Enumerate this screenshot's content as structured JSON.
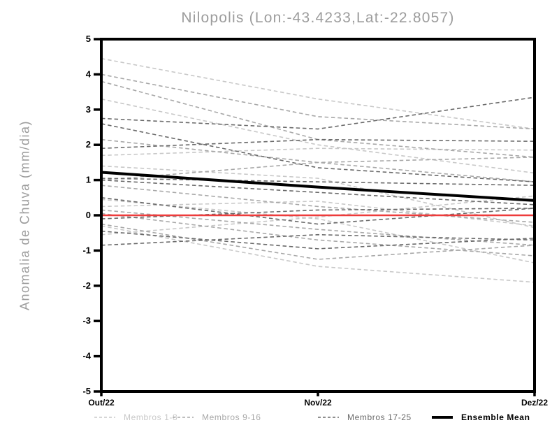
{
  "chart_data": {
    "type": "line",
    "title": "Nilopolis (Lon:-43.4233,Lat:-22.8057)",
    "ylabel": "Anomalia de Chuva (mm/dia)",
    "xlabel": "",
    "x_categories": [
      "Out/22",
      "Nov/22",
      "Dez/22"
    ],
    "ylim": [
      -5,
      5
    ],
    "yticks": [
      5,
      4,
      3,
      2,
      1,
      0,
      -1,
      -2,
      -3,
      -4,
      -5
    ],
    "grid": false,
    "legend_position": "bottom",
    "axis_color": "#000000",
    "tick_label_color": "#000000",
    "title_color": "#9c9c9c",
    "groups": [
      {
        "id": "g1",
        "label": "Membros 1-8",
        "color": "#c8c8c8",
        "style": "dashed"
      },
      {
        "id": "g2",
        "label": "Membros 9-16",
        "color": "#a8a8a8",
        "style": "dashed"
      },
      {
        "id": "g3",
        "label": "Membros 17-25",
        "color": "#6a6a6a",
        "style": "dashed"
      },
      {
        "id": "mean",
        "label": "Ensemble Mean",
        "color": "#000000",
        "style": "solid"
      }
    ],
    "zero_line": {
      "color": "#ee3c3c",
      "values": [
        0,
        0,
        0
      ]
    },
    "series": [
      {
        "group": "g1",
        "values": [
          4.45,
          3.3,
          2.45
        ]
      },
      {
        "group": "g1",
        "values": [
          3.3,
          2.0,
          1.2
        ]
      },
      {
        "group": "g1",
        "values": [
          1.7,
          1.9,
          1.85
        ]
      },
      {
        "group": "g1",
        "values": [
          1.4,
          1.05,
          -0.35
        ]
      },
      {
        "group": "g1",
        "values": [
          0.45,
          -0.1,
          -1.35
        ]
      },
      {
        "group": "g1",
        "values": [
          0.25,
          0.4,
          -0.3
        ]
      },
      {
        "group": "g1",
        "values": [
          -0.3,
          -1.45,
          -1.9
        ]
      },
      {
        "group": "g1",
        "values": [
          -0.55,
          -0.05,
          0.55
        ]
      },
      {
        "group": "g2",
        "values": [
          4.0,
          2.8,
          2.45
        ]
      },
      {
        "group": "g2",
        "values": [
          3.8,
          2.15,
          1.65
        ]
      },
      {
        "group": "g2",
        "values": [
          2.15,
          1.5,
          0.95
        ]
      },
      {
        "group": "g2",
        "values": [
          1.0,
          1.5,
          1.65
        ]
      },
      {
        "group": "g2",
        "values": [
          0.85,
          0.25,
          -0.2
        ]
      },
      {
        "group": "g2",
        "values": [
          0.15,
          -0.4,
          -0.85
        ]
      },
      {
        "group": "g2",
        "values": [
          0.05,
          -0.7,
          -1.15
        ]
      },
      {
        "group": "g2",
        "values": [
          -0.25,
          -1.25,
          -0.85
        ]
      },
      {
        "group": "g3",
        "values": [
          2.75,
          2.45,
          3.35
        ]
      },
      {
        "group": "g3",
        "values": [
          2.6,
          1.35,
          0.95
        ]
      },
      {
        "group": "g3",
        "values": [
          1.9,
          2.15,
          2.1
        ]
      },
      {
        "group": "g3",
        "values": [
          1.05,
          0.95,
          0.85
        ]
      },
      {
        "group": "g3",
        "values": [
          1.0,
          0.65,
          0.3
        ]
      },
      {
        "group": "g3",
        "values": [
          0.5,
          -0.25,
          0.2
        ]
      },
      {
        "group": "g3",
        "values": [
          -0.1,
          0.15,
          0.2
        ]
      },
      {
        "group": "g3",
        "values": [
          -0.45,
          -0.95,
          -0.65
        ]
      },
      {
        "group": "g3",
        "values": [
          -0.85,
          -0.55,
          -0.7
        ]
      }
    ],
    "ensemble_mean": {
      "group": "mean",
      "label": "Ensemble Mean",
      "color": "#000000",
      "values": [
        1.22,
        0.8,
        0.42
      ]
    }
  }
}
